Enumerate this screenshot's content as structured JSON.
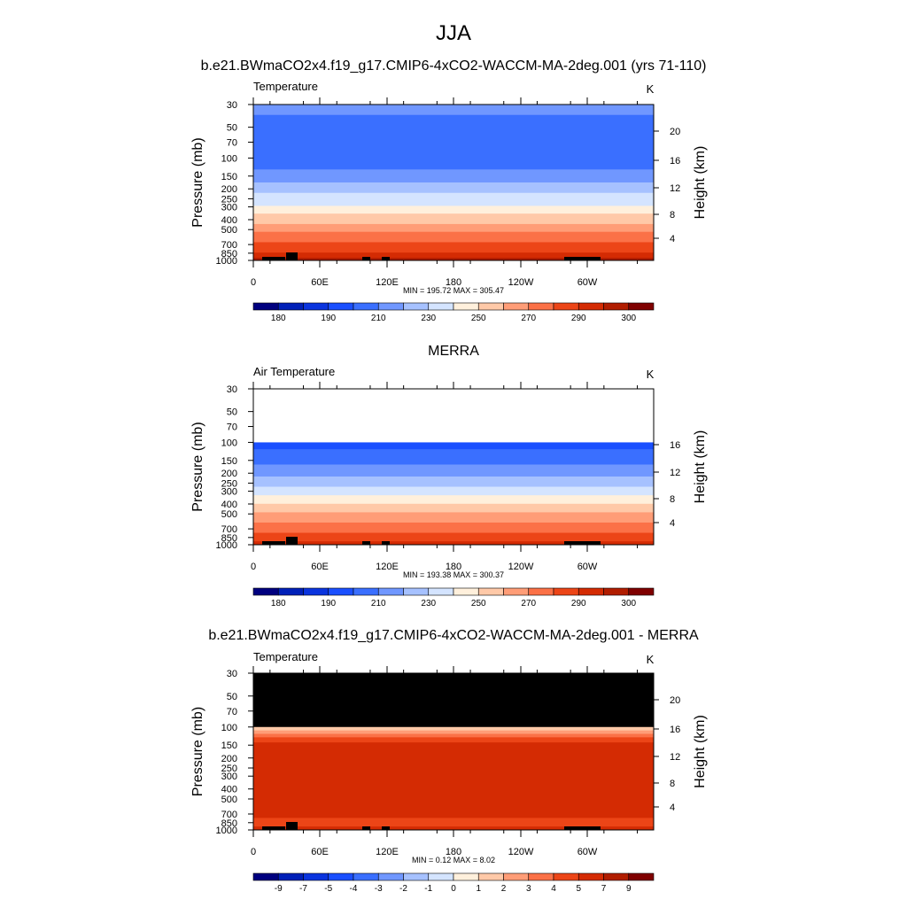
{
  "figure": {
    "season": "JJA",
    "case_title": "b.e21.BWmaCO2x4.f19_g17.CMIP6-4xCO2-WACCM-MA-2deg.001 (yrs 71-110)",
    "obs_title": "MERRA",
    "diff_title": "b.e21.BWmaCO2x4.f19_g17.CMIP6-4xCO2-WACCM-MA-2deg.001 - MERRA"
  },
  "chart_data": [
    {
      "type": "heatmap",
      "panel": "model",
      "left_label": "Temperature",
      "units": "K",
      "ylabel": "Pressure (mb)",
      "ylabel_right": "Height (km)",
      "pressure_ticks": [
        "30",
        "50",
        "70",
        "100",
        "150",
        "200",
        "250",
        "300",
        "400",
        "500",
        "700",
        "850",
        "1000"
      ],
      "height_ticks": [
        "4",
        "8",
        "12",
        "16",
        "20"
      ],
      "x_ticks": [
        "0",
        "60E",
        "120E",
        "180",
        "120W",
        "60W"
      ],
      "stats": "MIN = 195.72  MAX = 305.47",
      "min": 195.72,
      "max": 305.47,
      "colorbar_labels": [
        "180",
        "190",
        "210",
        "230",
        "250",
        "270",
        "290",
        "300"
      ],
      "palette": [
        "#00007f",
        "#0020b8",
        "#0a34de",
        "#1a4fff",
        "#3a6fff",
        "#7097ff",
        "#a6c1ff",
        "#d4e4ff",
        "#fff0dc",
        "#ffc9a8",
        "#ff9d77",
        "#fb7147",
        "#ec4517",
        "#d42b03",
        "#b11d00",
        "#7f0000"
      ],
      "levels": [
        180,
        185,
        190,
        200,
        210,
        220,
        230,
        240,
        250,
        260,
        270,
        280,
        290,
        295,
        300
      ],
      "profile_pressure_mb": [
        30,
        50,
        70,
        100,
        150,
        200,
        250,
        300,
        400,
        500,
        700,
        850,
        1000
      ],
      "profile_temperature_K": [
        212,
        207,
        204,
        203,
        215,
        226,
        236,
        243,
        258,
        268,
        283,
        292,
        302
      ],
      "data_floor_mb": null
    },
    {
      "type": "heatmap",
      "panel": "observations",
      "left_label": "Air Temperature",
      "units": "K",
      "ylabel": "Pressure (mb)",
      "ylabel_right": "Height (km)",
      "pressure_ticks": [
        "30",
        "50",
        "70",
        "100",
        "150",
        "200",
        "250",
        "300",
        "400",
        "500",
        "700",
        "850",
        "1000"
      ],
      "height_ticks": [
        "4",
        "8",
        "12",
        "16"
      ],
      "x_ticks": [
        "0",
        "60E",
        "120E",
        "180",
        "120W",
        "60W"
      ],
      "stats": "MIN = 193.38  MAX = 300.37",
      "min": 193.38,
      "max": 300.37,
      "colorbar_labels": [
        "180",
        "190",
        "210",
        "230",
        "250",
        "270",
        "290",
        "300"
      ],
      "palette": [
        "#00007f",
        "#0020b8",
        "#0a34de",
        "#1a4fff",
        "#3a6fff",
        "#7097ff",
        "#a6c1ff",
        "#d4e4ff",
        "#fff0dc",
        "#ffc9a8",
        "#ff9d77",
        "#fb7147",
        "#ec4517",
        "#d42b03",
        "#b11d00",
        "#7f0000"
      ],
      "levels": [
        180,
        185,
        190,
        200,
        210,
        220,
        230,
        240,
        250,
        260,
        270,
        280,
        290,
        295,
        300
      ],
      "profile_pressure_mb": [
        100,
        150,
        200,
        250,
        300,
        400,
        500,
        700,
        850,
        1000
      ],
      "profile_temperature_K": [
        196,
        208,
        218,
        228,
        236,
        252,
        262,
        277,
        286,
        294
      ],
      "data_floor_mb": 100
    },
    {
      "type": "heatmap",
      "panel": "difference",
      "left_label": "Temperature",
      "units": "K",
      "ylabel": "Pressure (mb)",
      "ylabel_right": "Height (km)",
      "pressure_ticks": [
        "30",
        "50",
        "70",
        "100",
        "150",
        "200",
        "250",
        "300",
        "400",
        "500",
        "700",
        "850",
        "1000"
      ],
      "height_ticks": [
        "4",
        "8",
        "12",
        "16",
        "20"
      ],
      "x_ticks": [
        "0",
        "60E",
        "120E",
        "180",
        "120W",
        "60W"
      ],
      "stats": "MIN =   0.12  MAX =   8.02",
      "min": 0.12,
      "max": 8.02,
      "colorbar_labels": [
        "-9",
        "-7",
        "-5",
        "-4",
        "-3",
        "-2",
        "-1",
        "0",
        "1",
        "2",
        "3",
        "4",
        "5",
        "7",
        "9"
      ],
      "palette": [
        "#00007f",
        "#0020b8",
        "#0a34de",
        "#1a4fff",
        "#3a6fff",
        "#7097ff",
        "#a6c1ff",
        "#d4e4ff",
        "#fff0dc",
        "#ffc9a8",
        "#ff9d77",
        "#fb7147",
        "#ec4517",
        "#d42b03",
        "#b11d00",
        "#7f0000"
      ],
      "levels": [
        -9,
        -7,
        -5,
        -4,
        -3,
        -2,
        -1,
        0,
        1,
        2,
        3,
        4,
        5,
        7,
        9
      ],
      "profile_pressure_mb": [
        100,
        120,
        150,
        200,
        250,
        300,
        400,
        500,
        700,
        850,
        1000
      ],
      "profile_temperature_K": [
        1.5,
        3.5,
        6.0,
        6.2,
        5.5,
        5.5,
        5.4,
        5.3,
        5.2,
        4.5,
        5.5
      ],
      "data_floor_mb": 100,
      "missing_color": "#000000"
    }
  ]
}
